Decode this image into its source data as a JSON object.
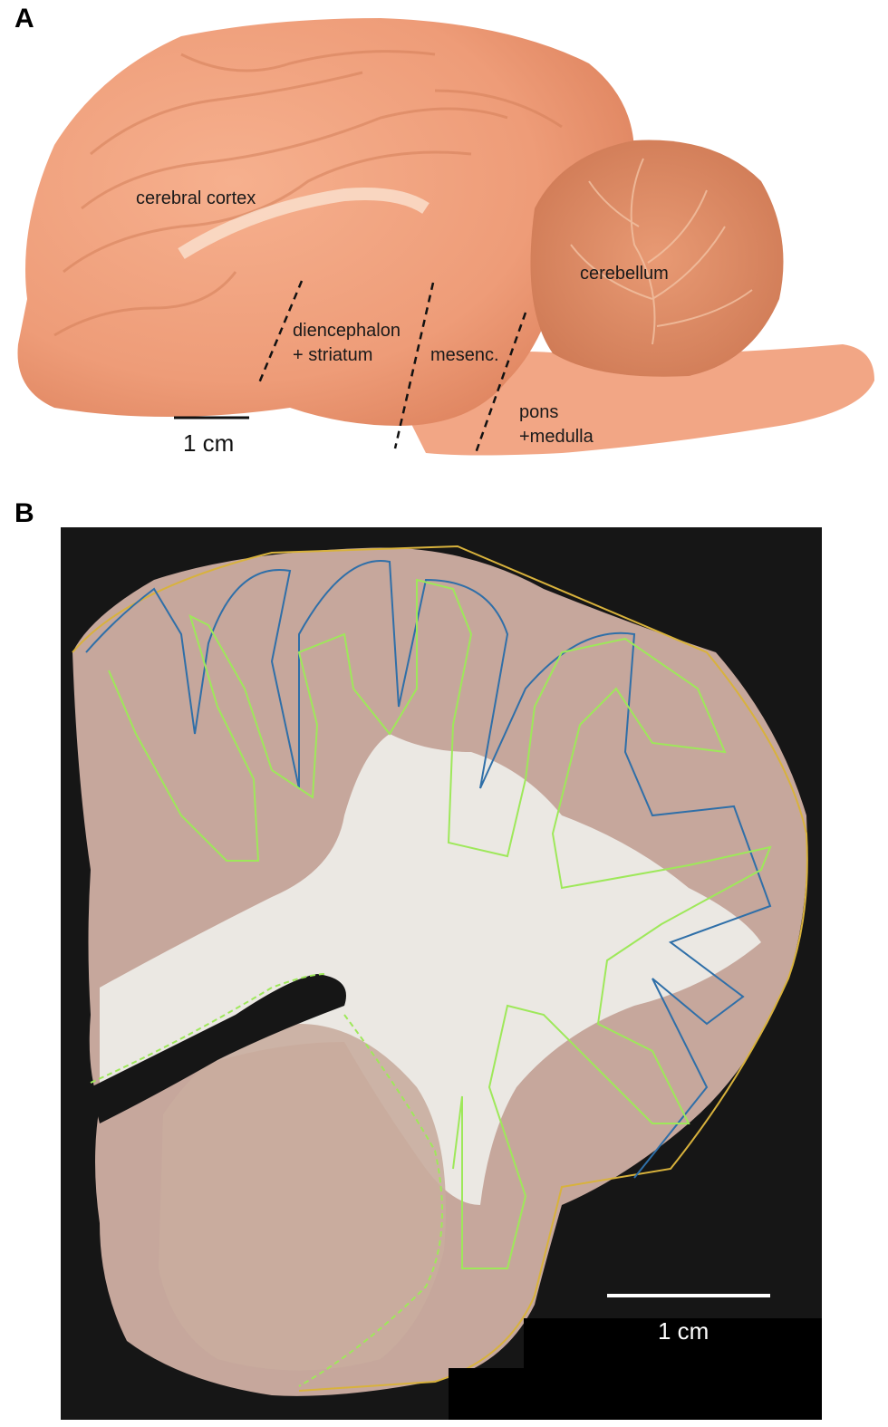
{
  "panel_a": {
    "letter": "A",
    "labels": {
      "cortex": "cerebral cortex",
      "cerebellum": "cerebellum",
      "diencephalon_line1": "diencephalon",
      "diencephalon_line2": "+ striatum",
      "mesenc": "mesenc.",
      "pons_line1": "pons",
      "pons_line2": "+medulla"
    },
    "scale_label": "1 cm"
  },
  "panel_b": {
    "letter": "B",
    "scale_label": "1 cm"
  },
  "colors": {
    "brain_tissue": "#f0a07e",
    "cerebellum": "#e3926c",
    "white_matter": "#ece9e4",
    "grey_matter": "#c7a89d",
    "background_b": "#141414",
    "outline_yellow": "#d8b23c",
    "outline_green": "#9ee85a",
    "outline_blue": "#2f6fa8"
  }
}
